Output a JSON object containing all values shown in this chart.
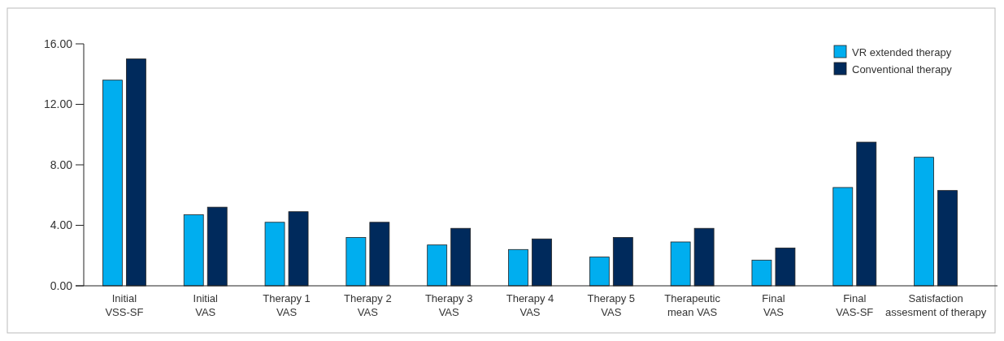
{
  "chart_data": {
    "type": "bar",
    "categories": [
      "Initial\nVSS-SF",
      "Initial\nVAS",
      "Therapy 1\nVAS",
      "Therapy 2\nVAS",
      "Therapy 3\nVAS",
      "Therapy 4\nVAS",
      "Therapy 5\nVAS",
      "Therapeutic\nmean VAS",
      "Final\nVAS",
      "Final\nVAS-SF",
      "Satisfaction\nassesment of therapy"
    ],
    "series": [
      {
        "name": "VR extended therapy",
        "color": "#00aeef",
        "values": [
          13.6,
          4.7,
          4.2,
          3.2,
          2.7,
          2.4,
          1.9,
          2.9,
          1.7,
          6.5,
          8.5
        ]
      },
      {
        "name": "Conventional therapy",
        "color": "#002a5c",
        "values": [
          15.0,
          5.2,
          4.9,
          4.2,
          3.8,
          3.1,
          3.2,
          3.8,
          2.5,
          9.5,
          6.3
        ]
      }
    ],
    "ylim": [
      0,
      16
    ],
    "yticks": [
      {
        "value": 0,
        "label": "0.00"
      },
      {
        "value": 4,
        "label": "4.00"
      },
      {
        "value": 8,
        "label": "8.00"
      },
      {
        "value": 12,
        "label": "12.00"
      },
      {
        "value": 16,
        "label": "16.00"
      }
    ],
    "legend": "top right",
    "grid": false
  }
}
